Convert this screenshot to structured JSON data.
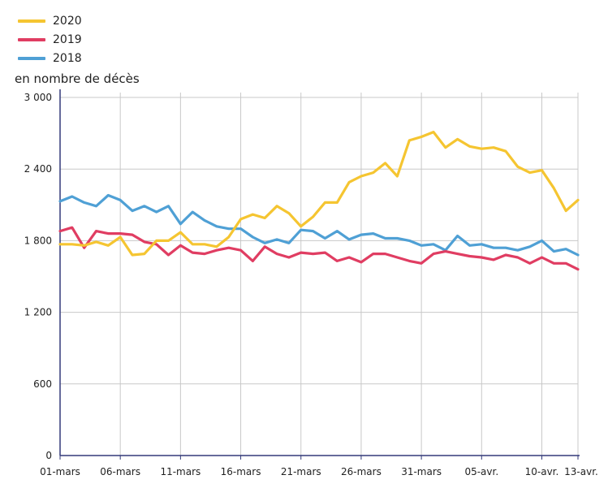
{
  "chart_data": {
    "type": "line",
    "ylabel": "en nombre de décès",
    "ylim": [
      0,
      3000
    ],
    "yticks": [
      0,
      600,
      1200,
      1800,
      2400,
      3000
    ],
    "ytick_labels": [
      "0",
      "600",
      "1 200",
      "1 800",
      "2 400",
      "3 000"
    ],
    "x_tick_labels": [
      "01-mars",
      "06-mars",
      "11-mars",
      "16-mars",
      "21-mars",
      "26-mars",
      "31-mars",
      "05-avr.",
      "10-avr.",
      "13-avr."
    ],
    "x_tick_days": [
      1,
      6,
      11,
      16,
      21,
      26,
      31,
      36,
      41,
      44
    ],
    "x_days": [
      1,
      2,
      3,
      4,
      5,
      6,
      7,
      8,
      9,
      10,
      11,
      12,
      13,
      14,
      15,
      16,
      17,
      18,
      19,
      20,
      21,
      22,
      23,
      24,
      25,
      26,
      27,
      28,
      29,
      30,
      31,
      32,
      33,
      34,
      35,
      36,
      37,
      38,
      39,
      40,
      41,
      42,
      43,
      44
    ],
    "grid": true,
    "legend_position": "top-left",
    "series": [
      {
        "name": "2020",
        "color": "#f5c531",
        "values": [
          1770,
          1770,
          1760,
          1790,
          1760,
          1830,
          1680,
          1690,
          1800,
          1800,
          1870,
          1770,
          1770,
          1750,
          1830,
          1980,
          2020,
          1990,
          2090,
          2030,
          1920,
          2000,
          2120,
          2120,
          2290,
          2340,
          2370,
          2450,
          2340,
          2640,
          2670,
          2710,
          2580,
          2650,
          2590,
          2570,
          2580,
          2550,
          2420,
          2370,
          2390,
          2240,
          2050,
          2140
        ]
      },
      {
        "name": "2019",
        "color": "#e03d62",
        "values": [
          1880,
          1910,
          1740,
          1880,
          1860,
          1860,
          1850,
          1790,
          1770,
          1680,
          1760,
          1700,
          1690,
          1720,
          1740,
          1720,
          1630,
          1750,
          1690,
          1660,
          1700,
          1690,
          1700,
          1630,
          1660,
          1620,
          1690,
          1690,
          1660,
          1630,
          1610,
          1690,
          1710,
          1690,
          1670,
          1660,
          1640,
          1680,
          1660,
          1610,
          1660,
          1610,
          1610,
          1560
        ]
      },
      {
        "name": "2018",
        "color": "#4fa0d5",
        "values": [
          2130,
          2170,
          2120,
          2090,
          2180,
          2140,
          2050,
          2090,
          2040,
          2090,
          1940,
          2040,
          1970,
          1920,
          1900,
          1900,
          1830,
          1780,
          1810,
          1780,
          1890,
          1880,
          1820,
          1880,
          1810,
          1850,
          1860,
          1820,
          1820,
          1800,
          1760,
          1770,
          1720,
          1840,
          1760,
          1770,
          1740,
          1740,
          1720,
          1750,
          1800,
          1710,
          1730,
          1680
        ]
      }
    ]
  }
}
